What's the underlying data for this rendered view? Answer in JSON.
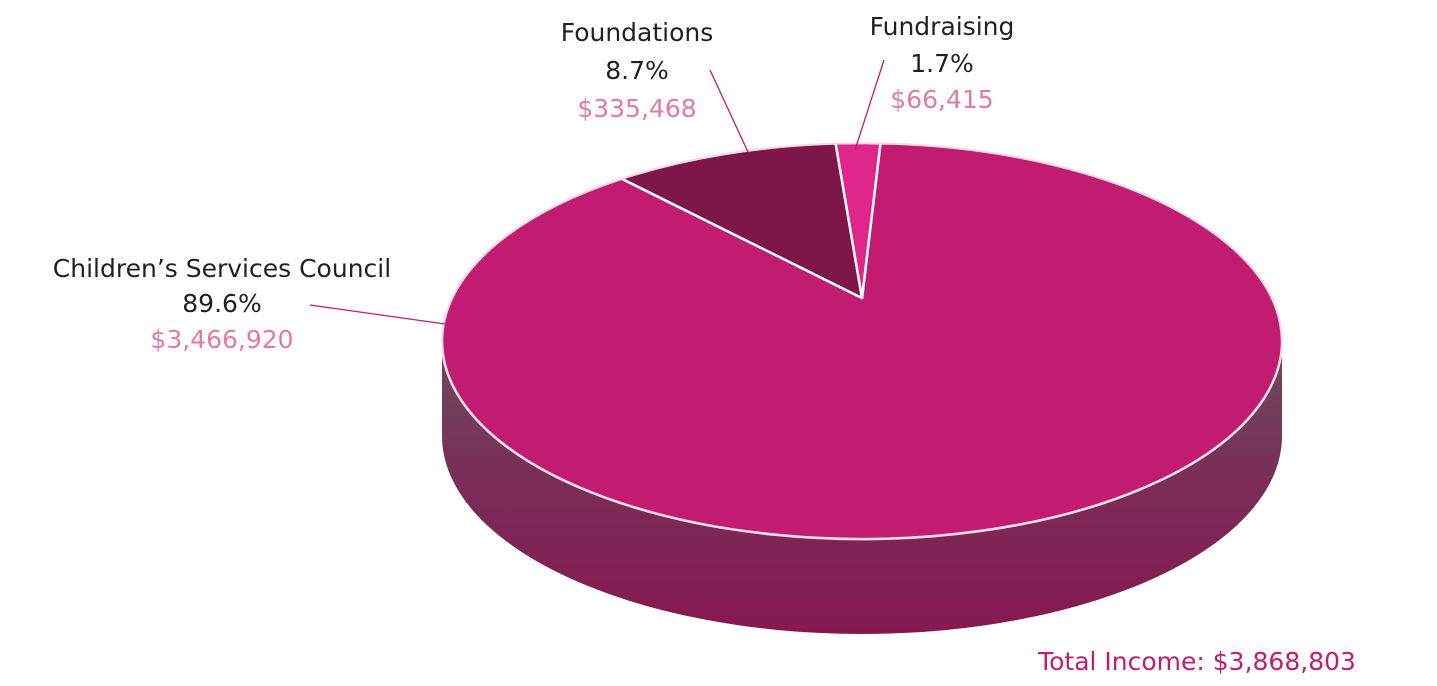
{
  "chart_data": {
    "type": "pie",
    "categories": [
      "Children’s Services Council",
      "Foundations",
      "Fundraising"
    ],
    "values": [
      89.6,
      8.7,
      1.7
    ],
    "value_labels": [
      "89.6%",
      "8.7%",
      "1.7%"
    ],
    "amounts": [
      "$3,466,920",
      "$335,468",
      "$66,415"
    ],
    "colors": [
      "#c21b72",
      "#7e1649",
      "#e0258d"
    ],
    "annotation": "Total Income: $3,868,803"
  }
}
